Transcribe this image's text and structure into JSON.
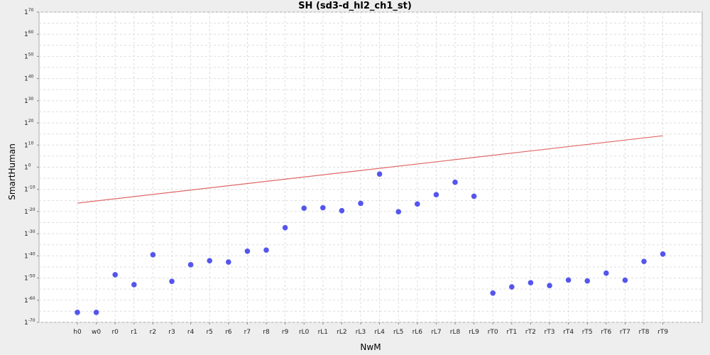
{
  "chart_data": {
    "type": "scatter",
    "title": "SH (sd3-d_hl2_ch1_st)",
    "xlabel": "NwM",
    "ylabel": "SmartHuman",
    "y_scale": "log",
    "ylim_exponent": [
      -70,
      70
    ],
    "y_tick_exponents": [
      70,
      60,
      50,
      40,
      30,
      20,
      10,
      0,
      -10,
      -20,
      -30,
      -40,
      -50,
      -60,
      -70
    ],
    "y_tick_base": "1",
    "grid": true,
    "categories": [
      "h0",
      "w0",
      "r0",
      "r1",
      "r2",
      "r3",
      "r4",
      "r5",
      "r6",
      "r7",
      "r8",
      "r9",
      "rL0",
      "rL1",
      "rL2",
      "rL3",
      "rL4",
      "rL5",
      "rL6",
      "rL7",
      "rL8",
      "rL9",
      "rT0",
      "rT1",
      "rT2",
      "rT3",
      "rT4",
      "rT5",
      "rT6",
      "rT7",
      "rT8",
      "rT9"
    ],
    "series": [
      {
        "type": "scatter",
        "color": "#5555ee",
        "log_values": [
          -65.5,
          -65.5,
          -48.5,
          -53,
          -39.5,
          -51.5,
          -44,
          -42.2,
          -42.8,
          -37.9,
          -37.4,
          -27.3,
          -18.5,
          -18.3,
          -19.6,
          -16.3,
          -3.1,
          -20.1,
          -16.6,
          -12.4,
          -6.8,
          -13.1,
          -56.8,
          -54,
          -52.1,
          -53.4,
          -50.9,
          -51.3,
          -47.8,
          -51,
          -42.5,
          -39.2
        ]
      },
      {
        "type": "line",
        "color": "#e06666",
        "log_values_endpoints": [
          -16.2,
          14.2
        ]
      }
    ]
  }
}
